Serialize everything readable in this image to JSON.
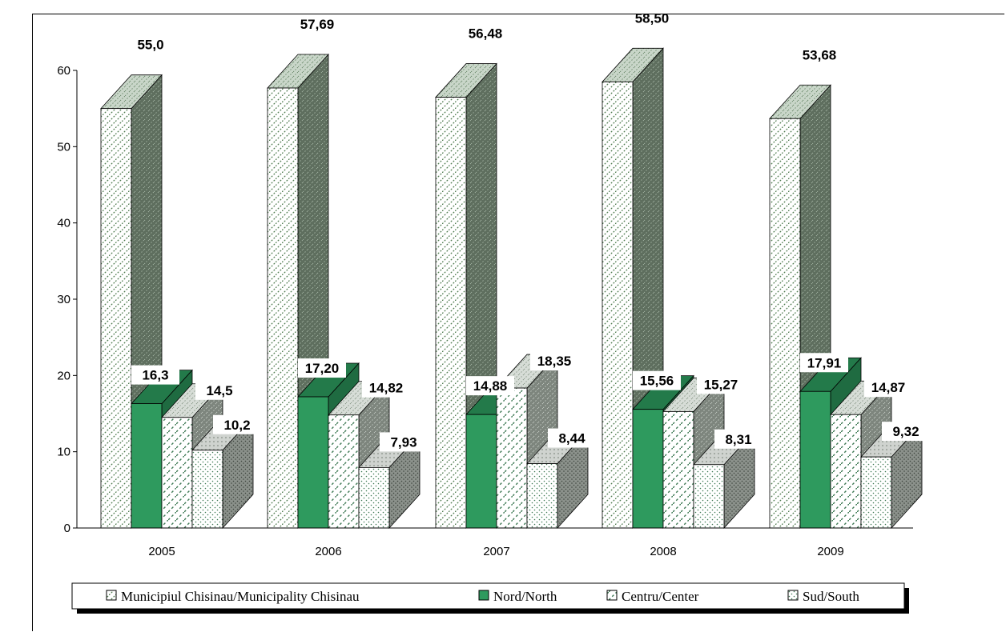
{
  "chart_data": {
    "type": "bar",
    "categories": [
      "2005",
      "2006",
      "2007",
      "2008",
      "2009"
    ],
    "series": [
      {
        "name": "Municipiul Chisinau/Municipality Chisinau",
        "values": [
          55.0,
          57.69,
          56.48,
          58.5,
          53.68
        ],
        "labels": [
          "55,0",
          "57,69",
          "56,48",
          "58,50",
          "53,68"
        ]
      },
      {
        "name": "Nord/North",
        "values": [
          16.3,
          17.2,
          14.88,
          15.56,
          17.91
        ],
        "labels": [
          "16,3",
          "17,20",
          "14,88",
          "15,56",
          "17,91"
        ]
      },
      {
        "name": "Centru/Center",
        "values": [
          14.5,
          14.82,
          18.35,
          15.27,
          14.87
        ],
        "labels": [
          "14,5",
          "14,82",
          "18,35",
          "15,27",
          "14,87"
        ]
      },
      {
        "name": "Sud/South",
        "values": [
          10.2,
          7.93,
          8.44,
          8.31,
          9.32
        ],
        "labels": [
          "10,2",
          "7,93",
          "8,44",
          "8,31",
          "9,32"
        ]
      }
    ],
    "yticks": [
      "0",
      "10",
      "20",
      "30",
      "40",
      "50",
      "60"
    ],
    "ylim": [
      0,
      60
    ],
    "legend_position": "bottom",
    "grid": false,
    "colors": {
      "chisinau": "#6f8f6f",
      "nord": "#2e9a5e",
      "centru": "#a7bfa7",
      "sud": "#9aa39a"
    }
  }
}
